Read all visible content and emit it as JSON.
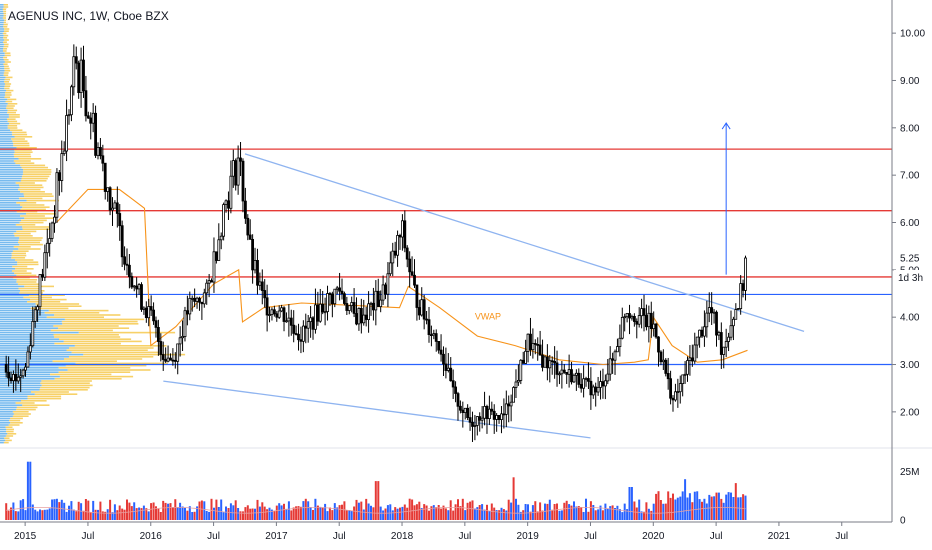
{
  "title": "AGENUS INC, 1W, Cboe BZX",
  "chart_data": {
    "type": "candlestick",
    "title": "AGENUS INC, 1W, Cboe BZX",
    "x_ticks": [
      "2015",
      "Jul",
      "2016",
      "Jul",
      "2017",
      "Jul",
      "2018",
      "Jul",
      "2019",
      "Jul",
      "2020",
      "Jul",
      "2021",
      "Jul"
    ],
    "y_ticks": [
      "10.00",
      "9.00",
      "8.00",
      "7.00",
      "6.00",
      "5.00",
      "4.00",
      "3.00",
      "2.00"
    ],
    "ylim": [
      1.3,
      10.7
    ],
    "xlim": [
      2014.8,
      2021.9
    ],
    "last_price": "5.25",
    "countdown": "1d 3h",
    "volume_ticks": [
      "25M",
      "0"
    ],
    "volume_ylim": [
      0,
      35
    ],
    "indicator_label": "VWAP",
    "horizontal_levels": {
      "red": [
        7.55,
        6.25,
        4.85
      ],
      "blue": [
        4.48,
        3.0
      ]
    },
    "trendlines": [
      {
        "x": [
          2016.75,
          2021.2
        ],
        "y": [
          7.45,
          3.7
        ]
      },
      {
        "x": [
          2016.1,
          2019.5
        ],
        "y": [
          2.65,
          1.45
        ]
      }
    ],
    "arrow": {
      "x": 2020.58,
      "y_from": 4.9,
      "y_to": 8.1
    },
    "price_anchors": [
      [
        2014.83,
        3.0
      ],
      [
        2014.92,
        2.7
      ],
      [
        2015.0,
        2.9
      ],
      [
        2015.08,
        4.2
      ],
      [
        2015.2,
        5.8
      ],
      [
        2015.3,
        7.5
      ],
      [
        2015.4,
        9.4
      ],
      [
        2015.48,
        8.7
      ],
      [
        2015.58,
        7.6
      ],
      [
        2015.7,
        6.3
      ],
      [
        2015.8,
        5.3
      ],
      [
        2015.9,
        4.5
      ],
      [
        2016.0,
        4.0
      ],
      [
        2016.1,
        3.2
      ],
      [
        2016.18,
        3.1
      ],
      [
        2016.3,
        4.2
      ],
      [
        2016.45,
        4.5
      ],
      [
        2016.58,
        6.3
      ],
      [
        2016.7,
        7.4
      ],
      [
        2016.8,
        5.2
      ],
      [
        2016.9,
        4.3
      ],
      [
        2017.05,
        4.1
      ],
      [
        2017.2,
        3.6
      ],
      [
        2017.35,
        4.2
      ],
      [
        2017.5,
        4.6
      ],
      [
        2017.62,
        4.0
      ],
      [
        2017.72,
        4.1
      ],
      [
        2017.85,
        4.5
      ],
      [
        2017.95,
        5.4
      ],
      [
        2018.0,
        5.8
      ],
      [
        2018.1,
        4.5
      ],
      [
        2018.2,
        3.9
      ],
      [
        2018.3,
        3.4
      ],
      [
        2018.42,
        2.3
      ],
      [
        2018.55,
        1.75
      ],
      [
        2018.65,
        2.0
      ],
      [
        2018.8,
        1.85
      ],
      [
        2018.92,
        2.7
      ],
      [
        2019.0,
        3.5
      ],
      [
        2019.12,
        3.1
      ],
      [
        2019.25,
        2.9
      ],
      [
        2019.4,
        2.7
      ],
      [
        2019.55,
        2.4
      ],
      [
        2019.68,
        3.1
      ],
      [
        2019.78,
        4.2
      ],
      [
        2019.9,
        4.0
      ],
      [
        2020.0,
        3.8
      ],
      [
        2020.08,
        3.0
      ],
      [
        2020.16,
        2.2
      ],
      [
        2020.25,
        2.8
      ],
      [
        2020.35,
        3.5
      ],
      [
        2020.45,
        4.2
      ],
      [
        2020.55,
        3.3
      ],
      [
        2020.63,
        4.0
      ],
      [
        2020.7,
        4.5
      ],
      [
        2020.75,
        5.25
      ]
    ],
    "vwap_anchors": [
      [
        2015.25,
        6.0
      ],
      [
        2015.5,
        6.7
      ],
      [
        2015.75,
        6.7
      ],
      [
        2015.95,
        6.3
      ],
      [
        2016.0,
        3.4
      ],
      [
        2016.2,
        3.8
      ],
      [
        2016.5,
        4.7
      ],
      [
        2016.7,
        5.0
      ],
      [
        2016.73,
        3.9
      ],
      [
        2016.9,
        4.2
      ],
      [
        2017.2,
        4.3
      ],
      [
        2017.6,
        4.25
      ],
      [
        2017.98,
        4.2
      ],
      [
        2018.05,
        4.65
      ],
      [
        2018.3,
        4.2
      ],
      [
        2018.6,
        3.6
      ],
      [
        2018.9,
        3.4
      ],
      [
        2019.25,
        3.1
      ],
      [
        2019.6,
        3.0
      ],
      [
        2019.85,
        3.05
      ],
      [
        2019.96,
        3.1
      ],
      [
        2020.0,
        4.0
      ],
      [
        2020.15,
        3.4
      ],
      [
        2020.35,
        3.05
      ],
      [
        2020.55,
        3.1
      ],
      [
        2020.75,
        3.3
      ]
    ],
    "volume_spikes": [
      {
        "x": 2015.03,
        "v": 30,
        "up": true
      },
      {
        "x": 2018.88,
        "v": 22,
        "up": false
      },
      {
        "x": 2017.8,
        "v": 20,
        "up": false
      },
      {
        "x": 2019.82,
        "v": 17,
        "up": true
      },
      {
        "x": 2020.25,
        "v": 21,
        "up": true
      },
      {
        "x": 2020.65,
        "v": 19,
        "up": false
      }
    ],
    "colors": {
      "up": "#ffffff",
      "down": "#000000",
      "wick": "#000000",
      "vol_up": "#2962ff",
      "vol_down": "#e53935",
      "red_level": "#e53935",
      "blue_level": "#2962ff",
      "trendline": "#8fb4f0",
      "vwap": "#f7931a",
      "profile_blue": "#4aa3e8",
      "profile_yellow": "#f5c542",
      "axis": "#787b86",
      "grid": "#e0e3eb"
    }
  }
}
